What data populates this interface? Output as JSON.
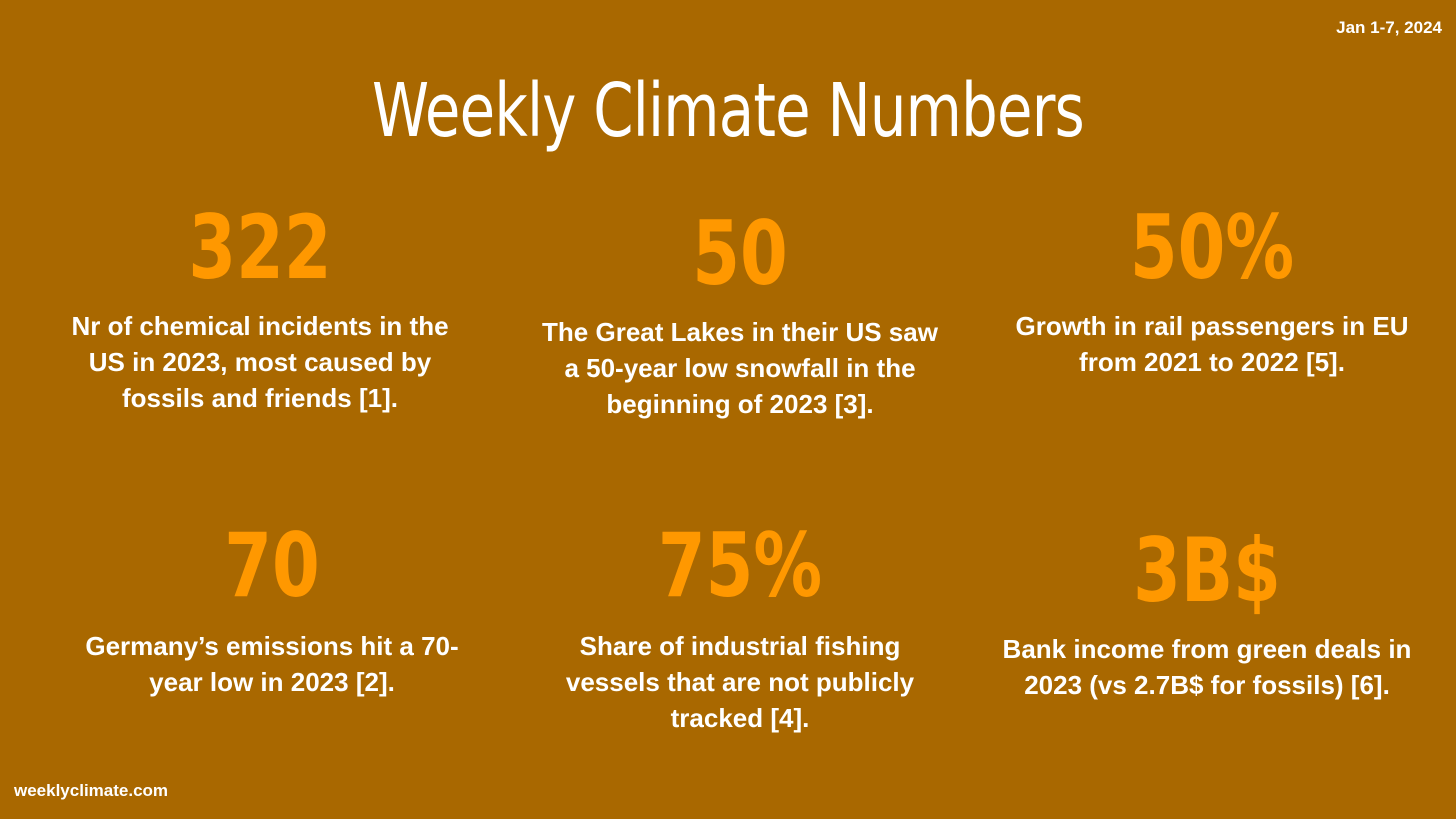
{
  "header": {
    "date_range": "Jan 1-7, 2024",
    "title": "Weekly Climate Numbers"
  },
  "stats": [
    {
      "value": "322",
      "description": "Nr of chemical incidents in the US in 2023, most caused by fossils and friends [1]."
    },
    {
      "value": "50",
      "description": "The Great Lakes in their US saw a 50-year low snowfall in the beginning of 2023 [3]."
    },
    {
      "value": "50%",
      "description": "Growth in rail passengers in EU from 2021 to 2022 [5]."
    },
    {
      "value": "70",
      "description": "Germany’s emissions hit a 70-year low in 2023 [2]."
    },
    {
      "value": "75%",
      "description": "Share of industrial fishing vessels that are not publicly tracked [4]."
    },
    {
      "value": "3B$",
      "description": "Bank income from green deals in 2023 (vs 2.7B$ for fossils) [6]."
    }
  ],
  "footer": {
    "site": "weeklyclimate.com"
  },
  "colors": {
    "background": "#a96800",
    "accent": "#ff9800",
    "text": "#ffffff"
  }
}
